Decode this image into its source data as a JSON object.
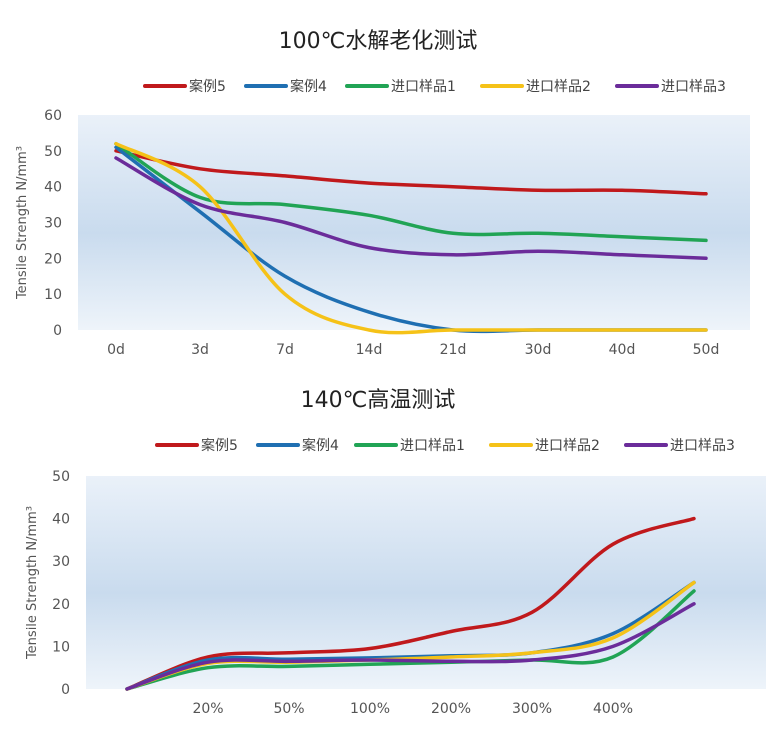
{
  "chart_data": [
    {
      "type": "line",
      "title": "100℃水解老化测试",
      "xlabel": "",
      "ylabel": "Tensile Strength  N/mm³",
      "ylim": [
        0,
        60
      ],
      "yticks": [
        0,
        10,
        20,
        30,
        40,
        50,
        60
      ],
      "grid": false,
      "legend_position": "top",
      "categories": [
        "0d",
        "3d",
        "7d",
        "14d",
        "21d",
        "30d",
        "40d",
        "50d"
      ],
      "series": [
        {
          "name": "案例5",
          "color": "#C0191C",
          "values": [
            50,
            45,
            43,
            41,
            40,
            39,
            39,
            38
          ]
        },
        {
          "name": "案例4",
          "color": "#1F6FB2",
          "values": [
            51,
            33,
            15,
            5,
            0,
            0,
            0,
            0
          ]
        },
        {
          "name": "进口样品1",
          "color": "#21A455",
          "values": [
            52,
            37,
            35,
            32,
            27,
            27,
            26,
            25
          ]
        },
        {
          "name": "进口样品2",
          "color": "#F5C218",
          "values": [
            52,
            40,
            10,
            0,
            0,
            0,
            0,
            0
          ]
        },
        {
          "name": "进口样品3",
          "color": "#6B2C9A",
          "values": [
            48,
            35,
            30,
            23,
            21,
            22,
            21,
            20
          ]
        }
      ]
    },
    {
      "type": "line",
      "title": "140℃高温测试",
      "xlabel": "",
      "ylabel": "Tensile Strength  N/mm³",
      "ylim": [
        0,
        50
      ],
      "yticks": [
        0,
        10,
        20,
        30,
        40,
        50
      ],
      "grid": false,
      "legend_position": "top",
      "categories": [
        "",
        "20%",
        "50%",
        "100%",
        "200%",
        "300%",
        "400%",
        ""
      ],
      "series": [
        {
          "name": "案例5",
          "color": "#C0191C",
          "values": [
            0,
            7.5,
            8.5,
            9.5,
            13.5,
            18,
            34,
            40
          ]
        },
        {
          "name": "案例4",
          "color": "#1F6FB2",
          "values": [
            0,
            6.8,
            7,
            7.3,
            7.8,
            8.5,
            13,
            25
          ]
        },
        {
          "name": "进口样品1",
          "color": "#21A455",
          "values": [
            0,
            5,
            5.3,
            5.8,
            6.3,
            6.8,
            7.5,
            23
          ]
        },
        {
          "name": "进口样品2",
          "color": "#F5C218",
          "values": [
            0,
            6,
            6.3,
            6.8,
            7.5,
            8.5,
            12,
            25
          ]
        },
        {
          "name": "进口样品3",
          "color": "#6B2C9A",
          "values": [
            0,
            6.3,
            6.5,
            6.8,
            6.5,
            6.8,
            10,
            20
          ]
        }
      ]
    }
  ]
}
